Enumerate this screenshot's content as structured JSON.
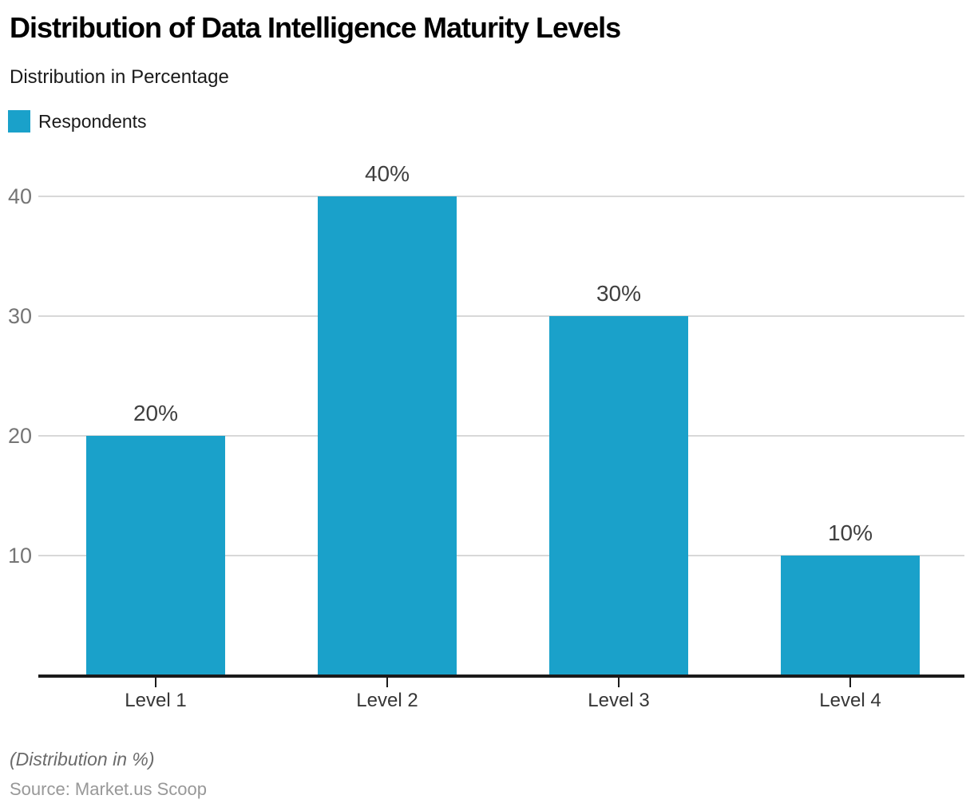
{
  "header": {
    "title": "Distribution of Data Intelligence Maturity Levels",
    "subtitle": "Distribution in Percentage"
  },
  "legend": {
    "label": "Respondents",
    "color": "#1aa1ca"
  },
  "chart_data": {
    "type": "bar",
    "title": "Distribution of Data Intelligence Maturity Levels",
    "subtitle": "Distribution in Percentage",
    "series_name": "Respondents",
    "categories": [
      "Level 1",
      "Level 2",
      "Level 3",
      "Level 4"
    ],
    "values": [
      20,
      40,
      30,
      10
    ],
    "value_labels": [
      "20%",
      "40%",
      "30%",
      "10%"
    ],
    "xlabel": "",
    "ylabel": "",
    "ylim": [
      0,
      40
    ],
    "yticks": [
      40,
      30,
      20,
      10
    ],
    "grid": "horizontal",
    "legend_position": "top-left",
    "bar_color": "#1aa1ca",
    "gridline_color": "#d8d8d8",
    "axis_color": "#1a1a1a"
  },
  "footer": {
    "note": "(Distribution in %)",
    "source": "Source: Market.us Scoop"
  }
}
